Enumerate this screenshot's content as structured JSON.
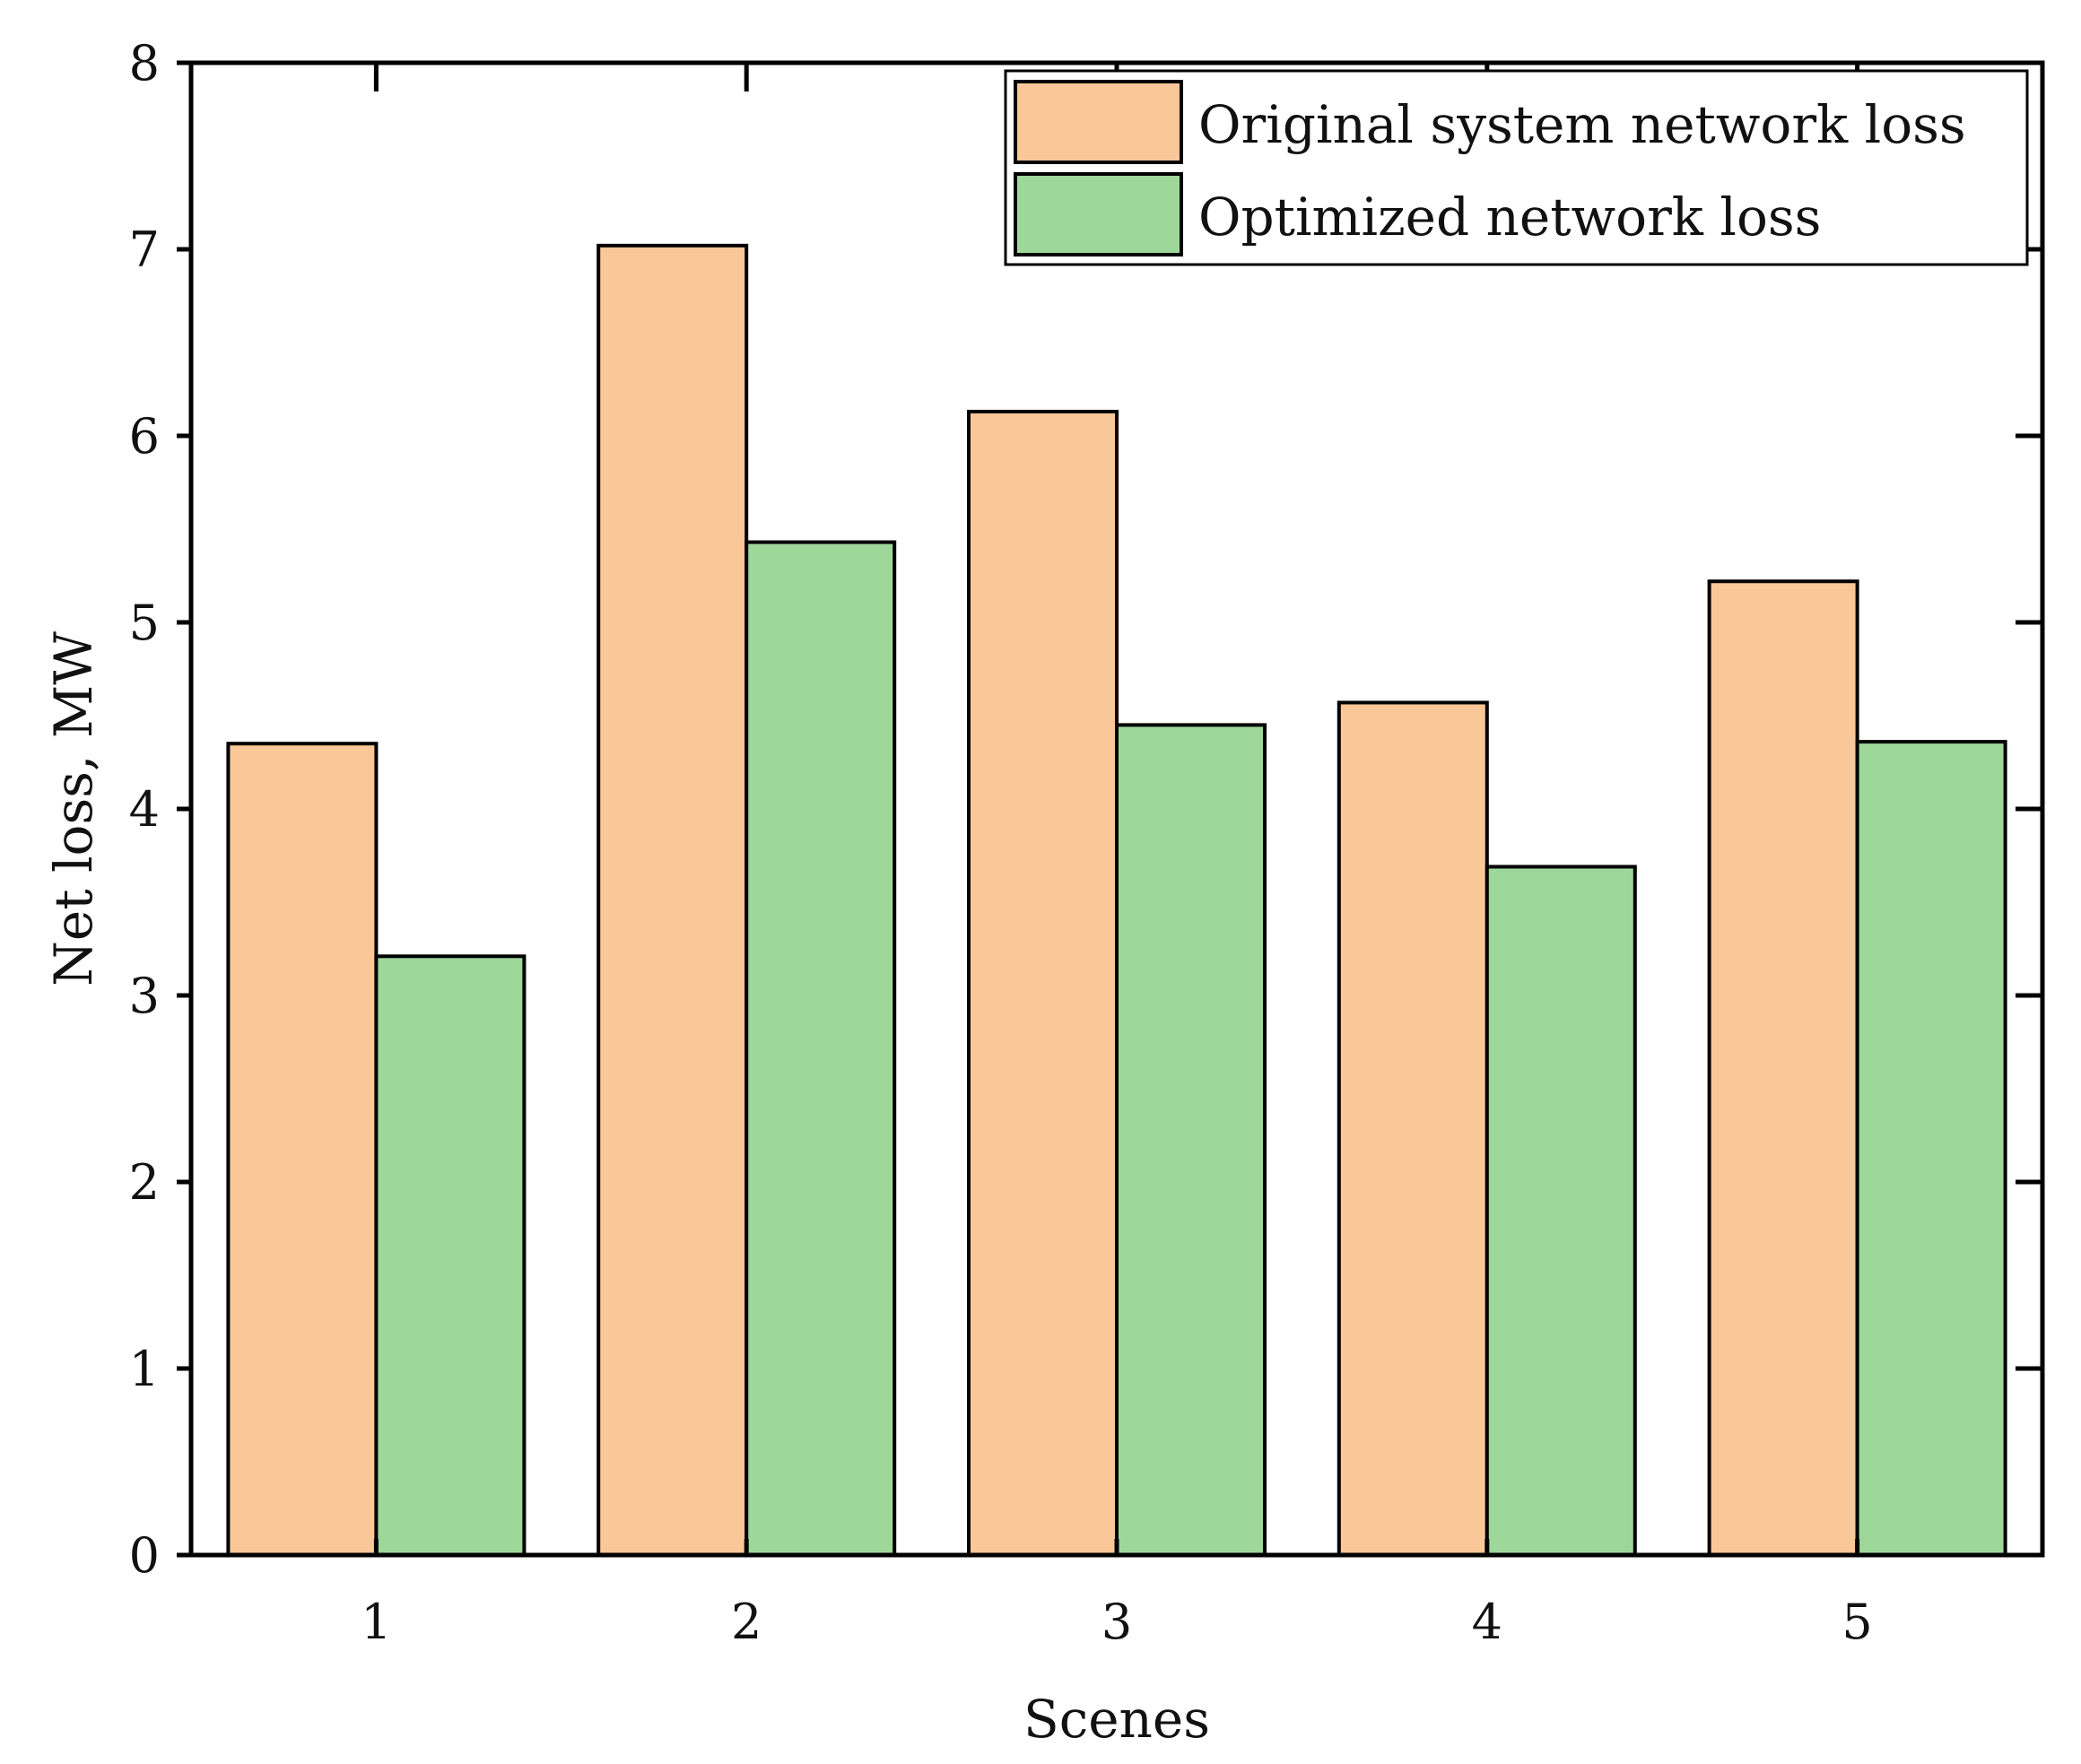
{
  "chart_data": {
    "type": "bar",
    "categories": [
      "1",
      "2",
      "3",
      "4",
      "5"
    ],
    "series": [
      {
        "name": "Original system network loss",
        "values": [
          4.35,
          7.02,
          6.13,
          4.57,
          5.22
        ],
        "color": "#FAC898"
      },
      {
        "name": "Optimized network loss",
        "values": [
          3.21,
          5.43,
          4.45,
          3.69,
          4.36
        ],
        "color": "#9ED79A"
      }
    ],
    "xlabel": "Scenes",
    "ylabel": "Net loss, MW",
    "ylim": [
      0,
      8
    ],
    "yticks": [
      "0",
      "1",
      "2",
      "3",
      "4",
      "5",
      "6",
      "7",
      "8"
    ],
    "grid": false,
    "legend_position": "top-right"
  }
}
